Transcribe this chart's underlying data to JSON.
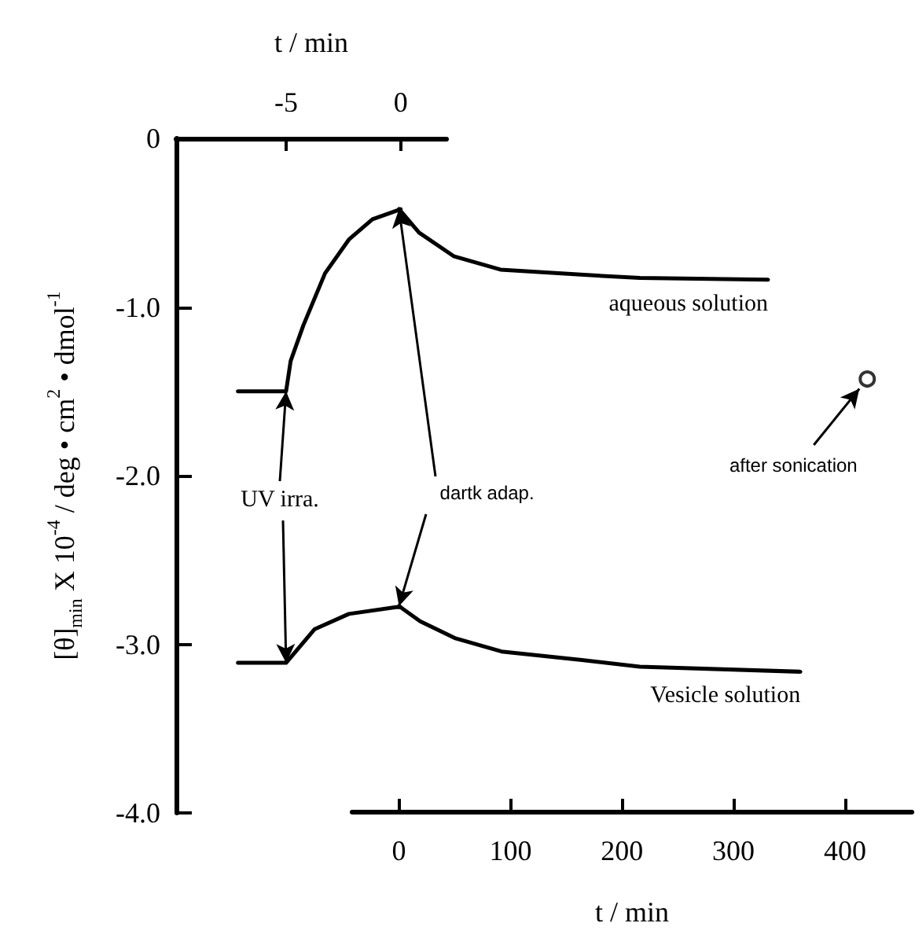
{
  "chart_data": {
    "type": "line",
    "xlabel": "t / min",
    "x2label": "t / min",
    "ylabel": "[θ]$_{min}$ X 10$^{-4}$ / deg • cm$^{2}$ • dmol$^{-1}$",
    "xlim": [
      -42,
      460
    ],
    "xticks": [
      0,
      100,
      200,
      300,
      400
    ],
    "x2lim": [
      -9.8,
      2
    ],
    "x2ticks": [
      -5,
      0
    ],
    "ylim": [
      -4,
      0
    ],
    "yticks": [
      0,
      {
        "value": -1,
        "label": "-1.0"
      },
      {
        "value": -2,
        "label": "-2.0"
      },
      {
        "value": -3,
        "label": "-3.0"
      },
      {
        "value": -4,
        "label": "-4.0"
      }
    ],
    "series": [
      {
        "axis": "x2",
        "color": "#000000",
        "x": [
          -7.1,
          -5,
          -4.8,
          -4.25,
          -3.3,
          -2.26,
          -1.23,
          0
        ],
        "values": [
          -1.5,
          -1.5,
          -1.32,
          -1.11,
          -0.8,
          -0.6,
          -0.48,
          -0.42
        ]
      },
      {
        "name": "aqueous solution",
        "color": "#000000",
        "x": [
          0,
          18,
          49,
          91,
          163,
          216,
          331
        ],
        "values": [
          -0.42,
          -0.56,
          -0.7,
          -0.78,
          -0.81,
          -0.83,
          -0.84
        ]
      },
      {
        "axis": "x2",
        "color": "#000000",
        "x": [
          -7.1,
          -5,
          -3.75,
          -2.26,
          -0.2,
          0
        ],
        "values": [
          -3.11,
          -3.11,
          -2.91,
          -2.82,
          -2.78,
          -2.78
        ]
      },
      {
        "name": "Vesicle solution",
        "color": "#000000",
        "x": [
          0,
          19,
          50,
          92,
          164,
          216,
          360
        ],
        "values": [
          -2.78,
          -2.87,
          -2.97,
          -3.05,
          -3.1,
          -3.14,
          -3.17
        ]
      },
      {
        "type": "scatter",
        "marker": "circle",
        "color": "#000000",
        "x": [
          420
        ],
        "values": [
          -1.43
        ]
      }
    ],
    "annotations": [
      "UV irra.",
      {
        "text": "dartk adap.",
        "x": 0,
        "y": -2.78
      },
      {
        "text": "after sonication",
        "x": 420,
        "y": -1.43
      }
    ]
  }
}
